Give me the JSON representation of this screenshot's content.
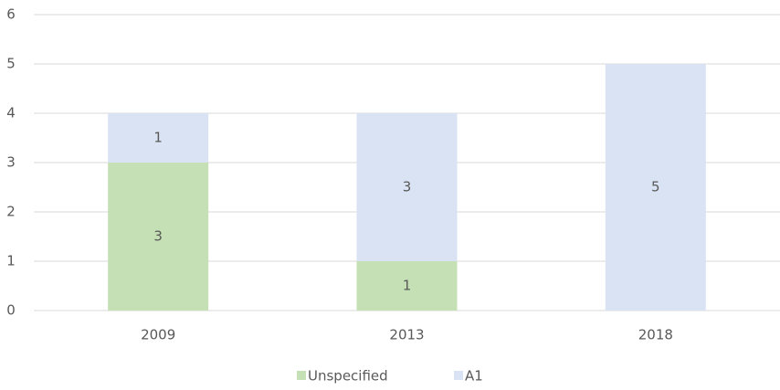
{
  "chart_data": {
    "type": "stacked_bar",
    "categories": [
      "2009",
      "2013",
      "2018"
    ],
    "series": [
      {
        "name": "Unspecified",
        "color": "#c5e0b4",
        "values": [
          3,
          1,
          null
        ]
      },
      {
        "name": "A1",
        "color": "#dae3f3",
        "values": [
          1,
          3,
          5
        ]
      }
    ],
    "ylim": [
      0,
      6
    ],
    "yticks": [
      0,
      1,
      2,
      3,
      4,
      5,
      6
    ],
    "grid": true,
    "legend": "bottom"
  }
}
